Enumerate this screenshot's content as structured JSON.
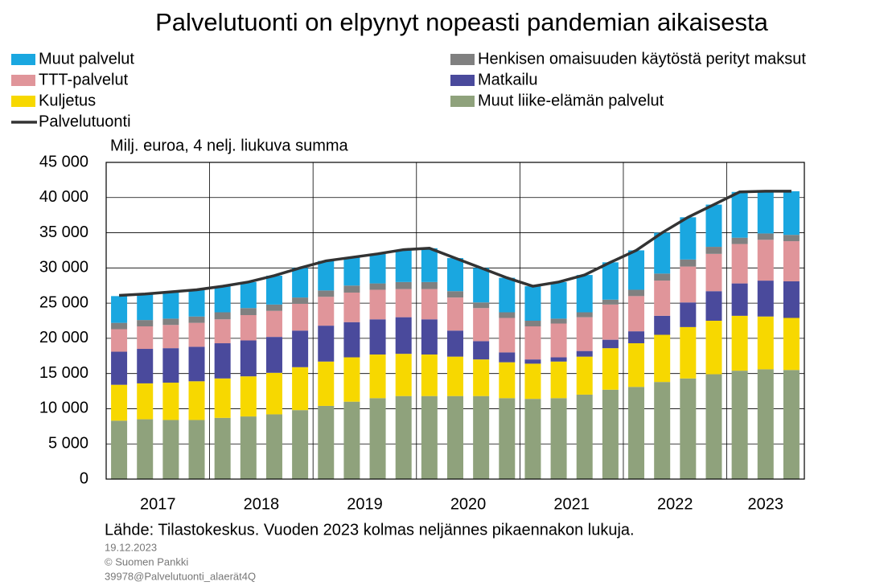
{
  "chart_data": {
    "type": "bar",
    "title": "Palvelutuonti on elpynyt nopeasti pandemian aikaisesta",
    "subtitle": "Milj. euroa, 4 nelj. liukuva summa",
    "source": "Lähde: Tilastokeskus. Vuoden 2023 kolmas neljännes pikaennakon lukuja.",
    "footer": [
      "19.12.2023",
      "© Suomen Pankki",
      "39978@Palvelutuonti_alaerät4Q"
    ],
    "stacked": true,
    "grid": true,
    "categories": [
      "2017",
      null,
      null,
      null,
      "2018",
      null,
      null,
      null,
      "2019",
      null,
      null,
      null,
      "2020",
      null,
      null,
      null,
      "2021",
      null,
      null,
      null,
      "2022",
      null,
      null,
      null,
      "2023",
      null,
      null
    ],
    "ylim": [
      0,
      45000
    ],
    "yticks": [
      0,
      {
        "value": 5000,
        "label": "5 000"
      },
      {
        "value": 10000,
        "label": "10 000"
      },
      {
        "value": 15000,
        "label": "15 000"
      },
      {
        "value": 20000,
        "label": "20 000"
      },
      {
        "value": 25000,
        "label": "25 000"
      },
      {
        "value": 30000,
        "label": "30 000"
      },
      {
        "value": 35000,
        "label": "35 000"
      },
      {
        "value": 40000,
        "label": "40 000"
      },
      {
        "value": 45000,
        "label": "45 000"
      }
    ],
    "series": [
      {
        "name": "Muut liike-elämän palvelut",
        "color": "#8fa27c",
        "type": "bar",
        "values": [
          8300,
          8500,
          8400,
          8400,
          8700,
          8900,
          9200,
          9800,
          10400,
          11000,
          11500,
          11800,
          11800,
          11800,
          11800,
          11500,
          11400,
          11500,
          12000,
          12700,
          13100,
          13800,
          14300,
          14900,
          15400,
          15600,
          15500
        ]
      },
      {
        "name": "Kuljetus",
        "color": "#f7d800",
        "type": "bar",
        "values": [
          5100,
          5100,
          5300,
          5500,
          5600,
          5700,
          5900,
          6100,
          6300,
          6300,
          6200,
          6000,
          5900,
          5600,
          5200,
          5100,
          5000,
          5200,
          5400,
          5900,
          6200,
          6700,
          7300,
          7600,
          7800,
          7500,
          7400
        ]
      },
      {
        "name": "Matkailu",
        "color": "#4a4a9c",
        "type": "bar",
        "values": [
          4700,
          4900,
          4900,
          4900,
          5000,
          5100,
          5100,
          5200,
          5100,
          5000,
          5000,
          5200,
          5000,
          3700,
          2600,
          1400,
          600,
          600,
          800,
          1200,
          1700,
          2700,
          3500,
          4200,
          4600,
          5100,
          5200
        ]
      },
      {
        "name": "TTT-palvelut",
        "color": "#e0959a",
        "type": "bar",
        "values": [
          3200,
          3200,
          3300,
          3400,
          3400,
          3600,
          3700,
          3800,
          4100,
          4200,
          4200,
          4000,
          4300,
          4700,
          4700,
          4900,
          4700,
          4800,
          4800,
          5000,
          5000,
          5000,
          5100,
          5300,
          5600,
          5800,
          5700
        ]
      },
      {
        "name": "Henkisen omaisuuden käytöstä perityt maksut",
        "color": "#808080",
        "type": "bar",
        "values": [
          900,
          900,
          900,
          900,
          1000,
          1000,
          900,
          900,
          900,
          1000,
          900,
          1000,
          1000,
          900,
          800,
          800,
          800,
          700,
          700,
          700,
          900,
          1000,
          1000,
          1000,
          900,
          900,
          900
        ]
      },
      {
        "name": "Muut palvelut",
        "color": "#1aa7e0",
        "type": "bar",
        "values": [
          3800,
          3700,
          3800,
          3800,
          3700,
          3700,
          4100,
          4200,
          4200,
          4000,
          4200,
          4600,
          4800,
          4700,
          4900,
          4900,
          4900,
          5200,
          5300,
          5300,
          5600,
          5800,
          6000,
          6000,
          6500,
          6000,
          6200
        ]
      },
      {
        "name": "Palvelutuonti",
        "color": "#333333",
        "type": "line",
        "values": [
          26100,
          26300,
          26600,
          26900,
          27400,
          28000,
          28900,
          30000,
          31000,
          31500,
          32000,
          32600,
          32800,
          31400,
          30000,
          28600,
          27400,
          28000,
          29000,
          30800,
          32500,
          35000,
          37200,
          39000,
          40800,
          40900,
          40900
        ]
      }
    ]
  }
}
